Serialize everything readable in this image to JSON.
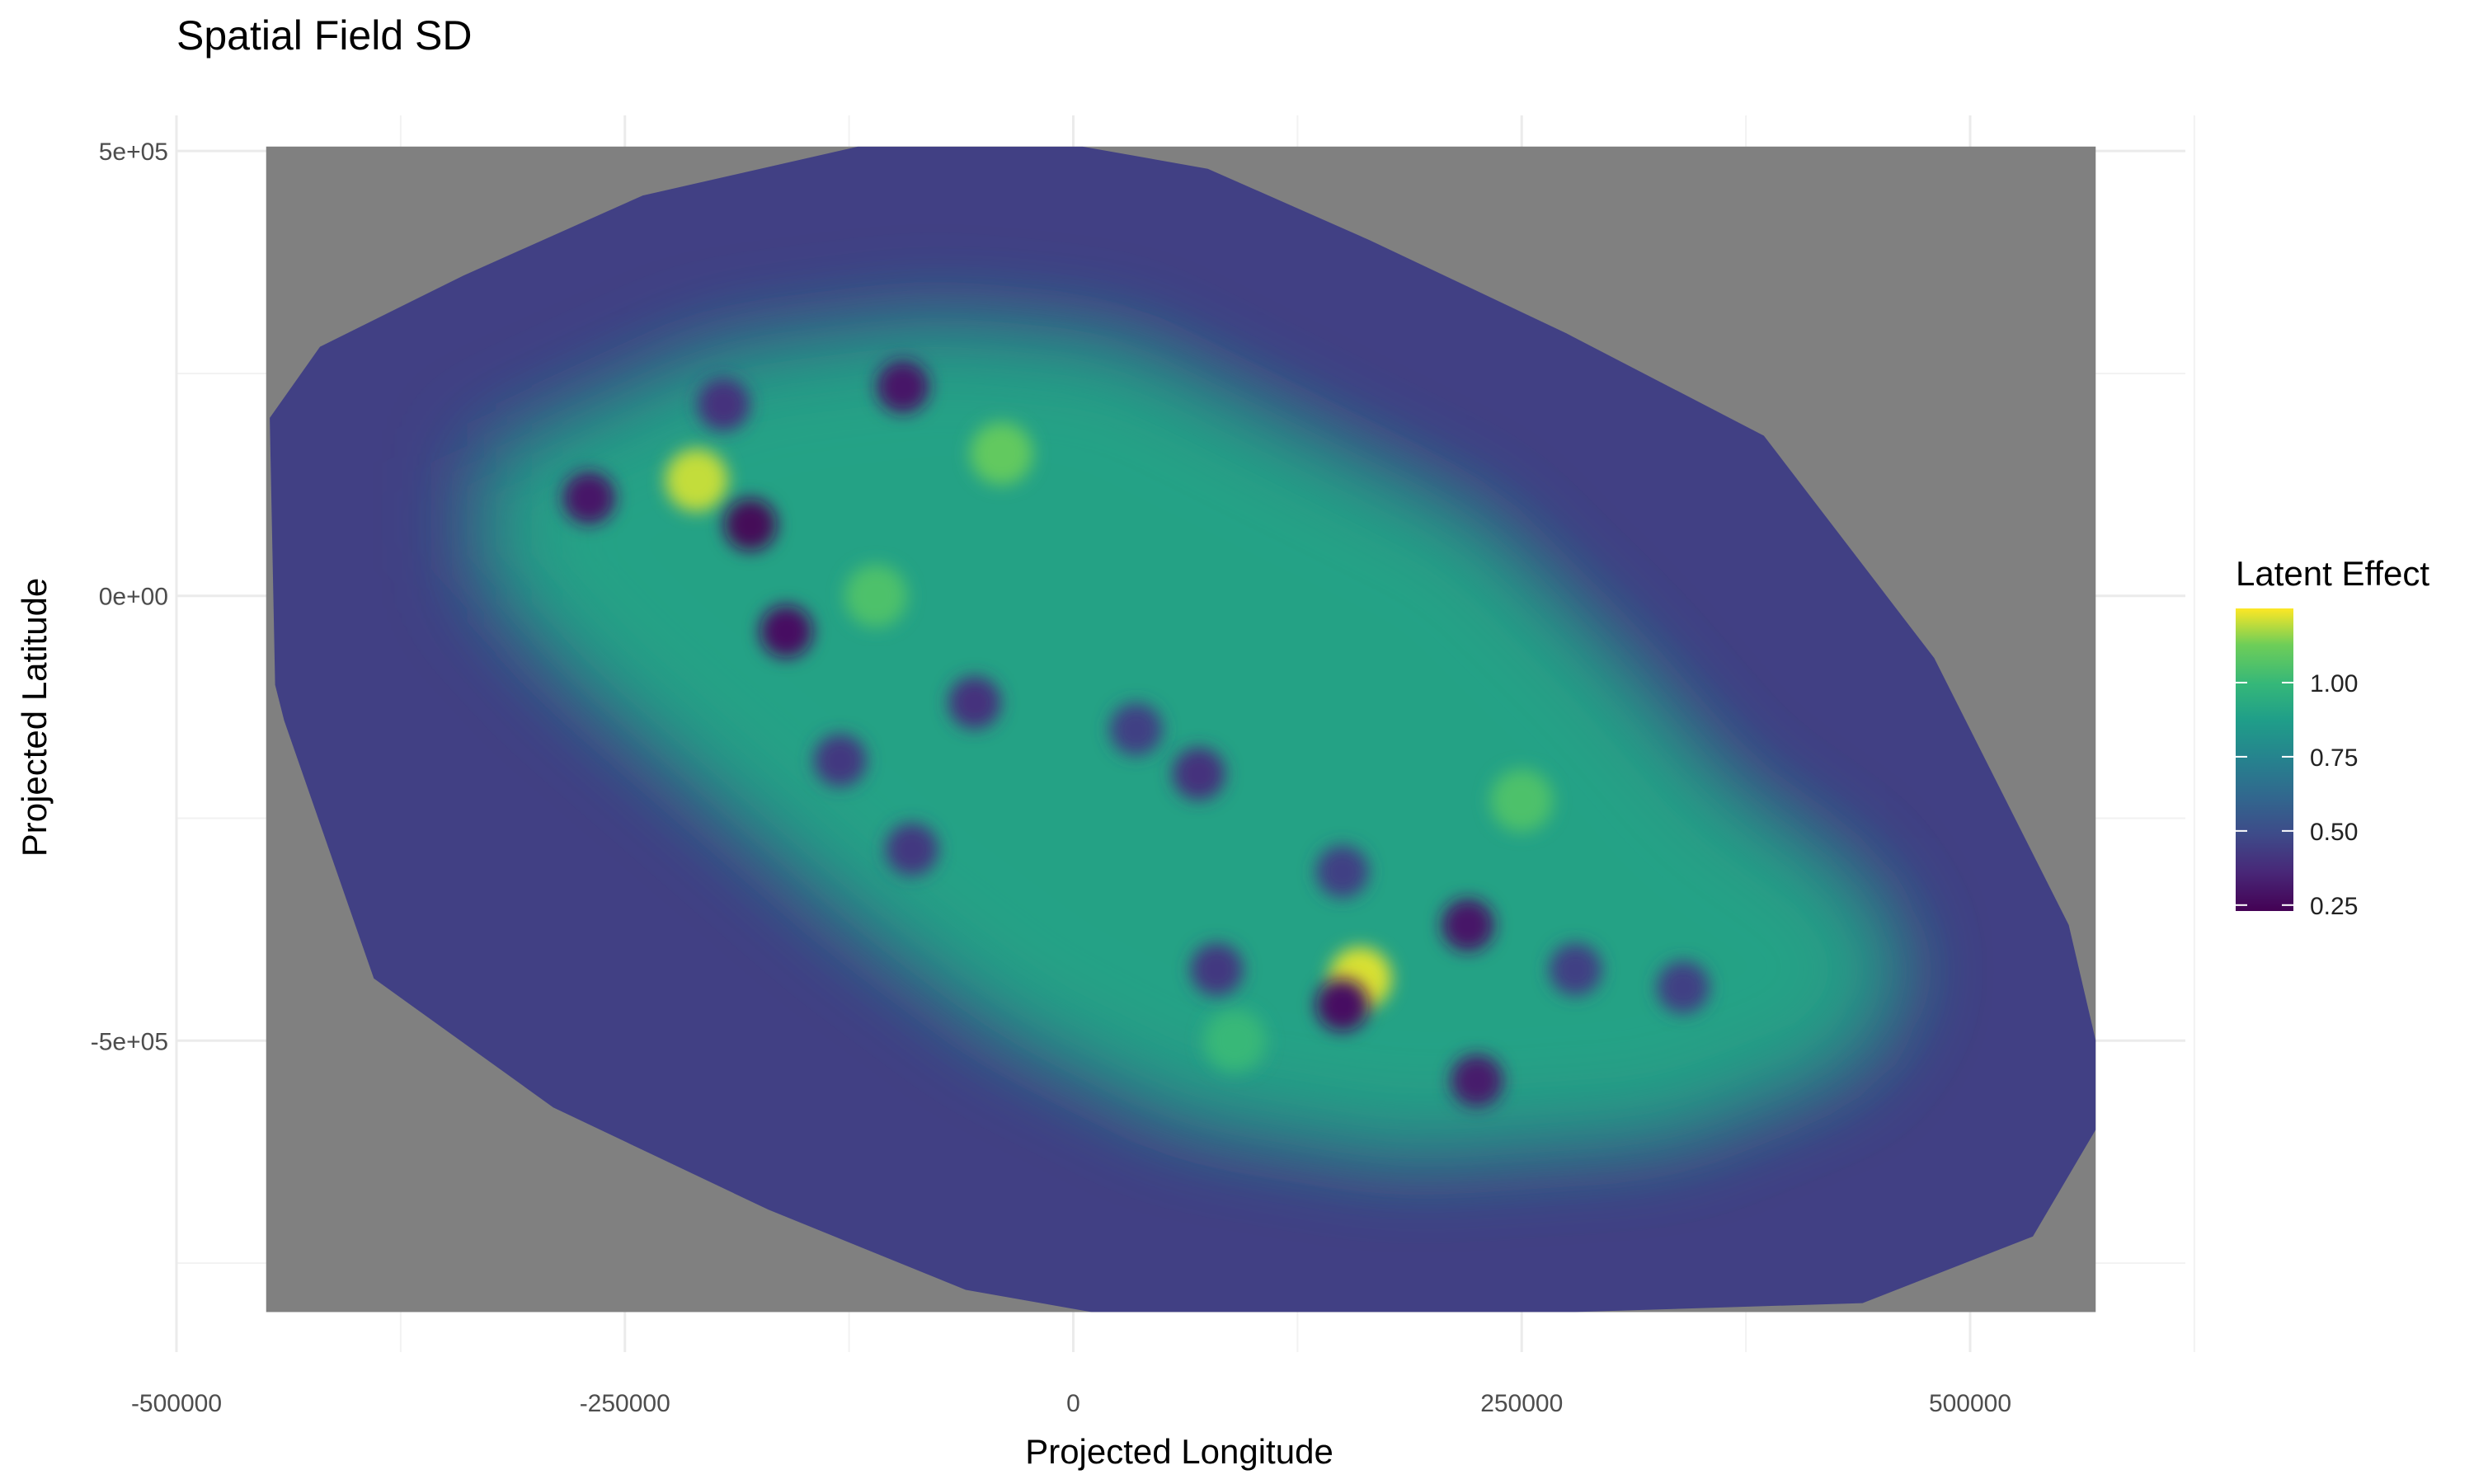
{
  "chart_data": {
    "type": "heatmap",
    "title": "Spatial Field SD",
    "xlabel": "Projected Longitude",
    "ylabel": "Projected Latitude",
    "xlim": [
      -500000,
      620000
    ],
    "ylim": [
      -850000,
      540000
    ],
    "x_ticks": [
      {
        "value": -500000,
        "label": "-500000"
      },
      {
        "value": -250000,
        "label": "-250000"
      },
      {
        "value": 0,
        "label": "0"
      },
      {
        "value": 250000,
        "label": "250000"
      },
      {
        "value": 500000,
        "label": "500000"
      }
    ],
    "y_ticks": [
      {
        "value": 500000,
        "label": "5e+05"
      },
      {
        "value": 0,
        "label": "0e+00"
      },
      {
        "value": -500000,
        "label": "-5e+05"
      }
    ],
    "grid": true,
    "raster_extent": {
      "xmin": -450000,
      "xmax": 570000,
      "ymin": -805000,
      "ymax": 505000
    },
    "na_color": "#808080",
    "domain_outline": [
      [
        -120000,
        505000
      ],
      [
        5000,
        505000
      ],
      [
        75000,
        480000
      ],
      [
        165000,
        400000
      ],
      [
        275000,
        295000
      ],
      [
        385000,
        180000
      ],
      [
        480000,
        -70000
      ],
      [
        555000,
        -370000
      ],
      [
        570000,
        -500000
      ],
      [
        570000,
        -600000
      ],
      [
        535000,
        -720000
      ],
      [
        440000,
        -795000
      ],
      [
        280000,
        -805000
      ],
      [
        10000,
        -805000
      ],
      [
        -60000,
        -780000
      ],
      [
        -170000,
        -690000
      ],
      [
        -290000,
        -575000
      ],
      [
        -390000,
        -430000
      ],
      [
        -440000,
        -140000
      ],
      [
        -445000,
        -100000
      ],
      [
        -448000,
        200000
      ],
      [
        -420000,
        280000
      ],
      [
        -340000,
        360000
      ],
      [
        -240000,
        450000
      ]
    ],
    "high_zone": [
      [
        -330000,
        150000
      ],
      [
        -200000,
        270000
      ],
      [
        -80000,
        300000
      ],
      [
        20000,
        280000
      ],
      [
        120000,
        180000
      ],
      [
        220000,
        80000
      ],
      [
        300000,
        -80000
      ],
      [
        360000,
        -220000
      ],
      [
        430000,
        -320000
      ],
      [
        460000,
        -420000
      ],
      [
        430000,
        -520000
      ],
      [
        330000,
        -600000
      ],
      [
        180000,
        -620000
      ],
      [
        60000,
        -580000
      ],
      [
        -40000,
        -480000
      ],
      [
        -120000,
        -360000
      ],
      [
        -200000,
        -220000
      ],
      [
        -280000,
        -80000
      ],
      [
        -330000,
        30000
      ]
    ],
    "low_spots": [
      {
        "x": -270000,
        "y": 110000,
        "value": 0.3
      },
      {
        "x": -180000,
        "y": 80000,
        "value": 0.25
      },
      {
        "x": -160000,
        "y": -40000,
        "value": 0.28
      },
      {
        "x": -195000,
        "y": 215000,
        "value": 0.4
      },
      {
        "x": -95000,
        "y": 235000,
        "value": 0.3
      },
      {
        "x": -55000,
        "y": -120000,
        "value": 0.4
      },
      {
        "x": -130000,
        "y": -185000,
        "value": 0.42
      },
      {
        "x": 35000,
        "y": -150000,
        "value": 0.45
      },
      {
        "x": 70000,
        "y": -200000,
        "value": 0.4
      },
      {
        "x": -90000,
        "y": -285000,
        "value": 0.42
      },
      {
        "x": 150000,
        "y": -310000,
        "value": 0.45
      },
      {
        "x": 150000,
        "y": -460000,
        "value": 0.28
      },
      {
        "x": 220000,
        "y": -370000,
        "value": 0.3
      },
      {
        "x": 225000,
        "y": -545000,
        "value": 0.32
      },
      {
        "x": 280000,
        "y": -420000,
        "value": 0.45
      },
      {
        "x": 340000,
        "y": -440000,
        "value": 0.45
      },
      {
        "x": 80000,
        "y": -420000,
        "value": 0.42
      }
    ],
    "bright_spots": [
      {
        "x": -210000,
        "y": 130000,
        "value": 1.2
      },
      {
        "x": -40000,
        "y": 160000,
        "value": 1.1
      },
      {
        "x": 160000,
        "y": -430000,
        "value": 1.22
      },
      {
        "x": -110000,
        "y": 0,
        "value": 1.05
      },
      {
        "x": 250000,
        "y": -230000,
        "value": 1.05
      },
      {
        "x": 90000,
        "y": -500000,
        "value": 1.0
      }
    ],
    "legend": {
      "title": "Latent Effect",
      "position": "right",
      "colormap": "viridis",
      "range": [
        0.23,
        1.25
      ],
      "ticks": [
        {
          "value": 1.0,
          "label": "1.00"
        },
        {
          "value": 0.75,
          "label": "0.75"
        },
        {
          "value": 0.5,
          "label": "0.50"
        },
        {
          "value": 0.25,
          "label": "0.25"
        }
      ]
    }
  }
}
